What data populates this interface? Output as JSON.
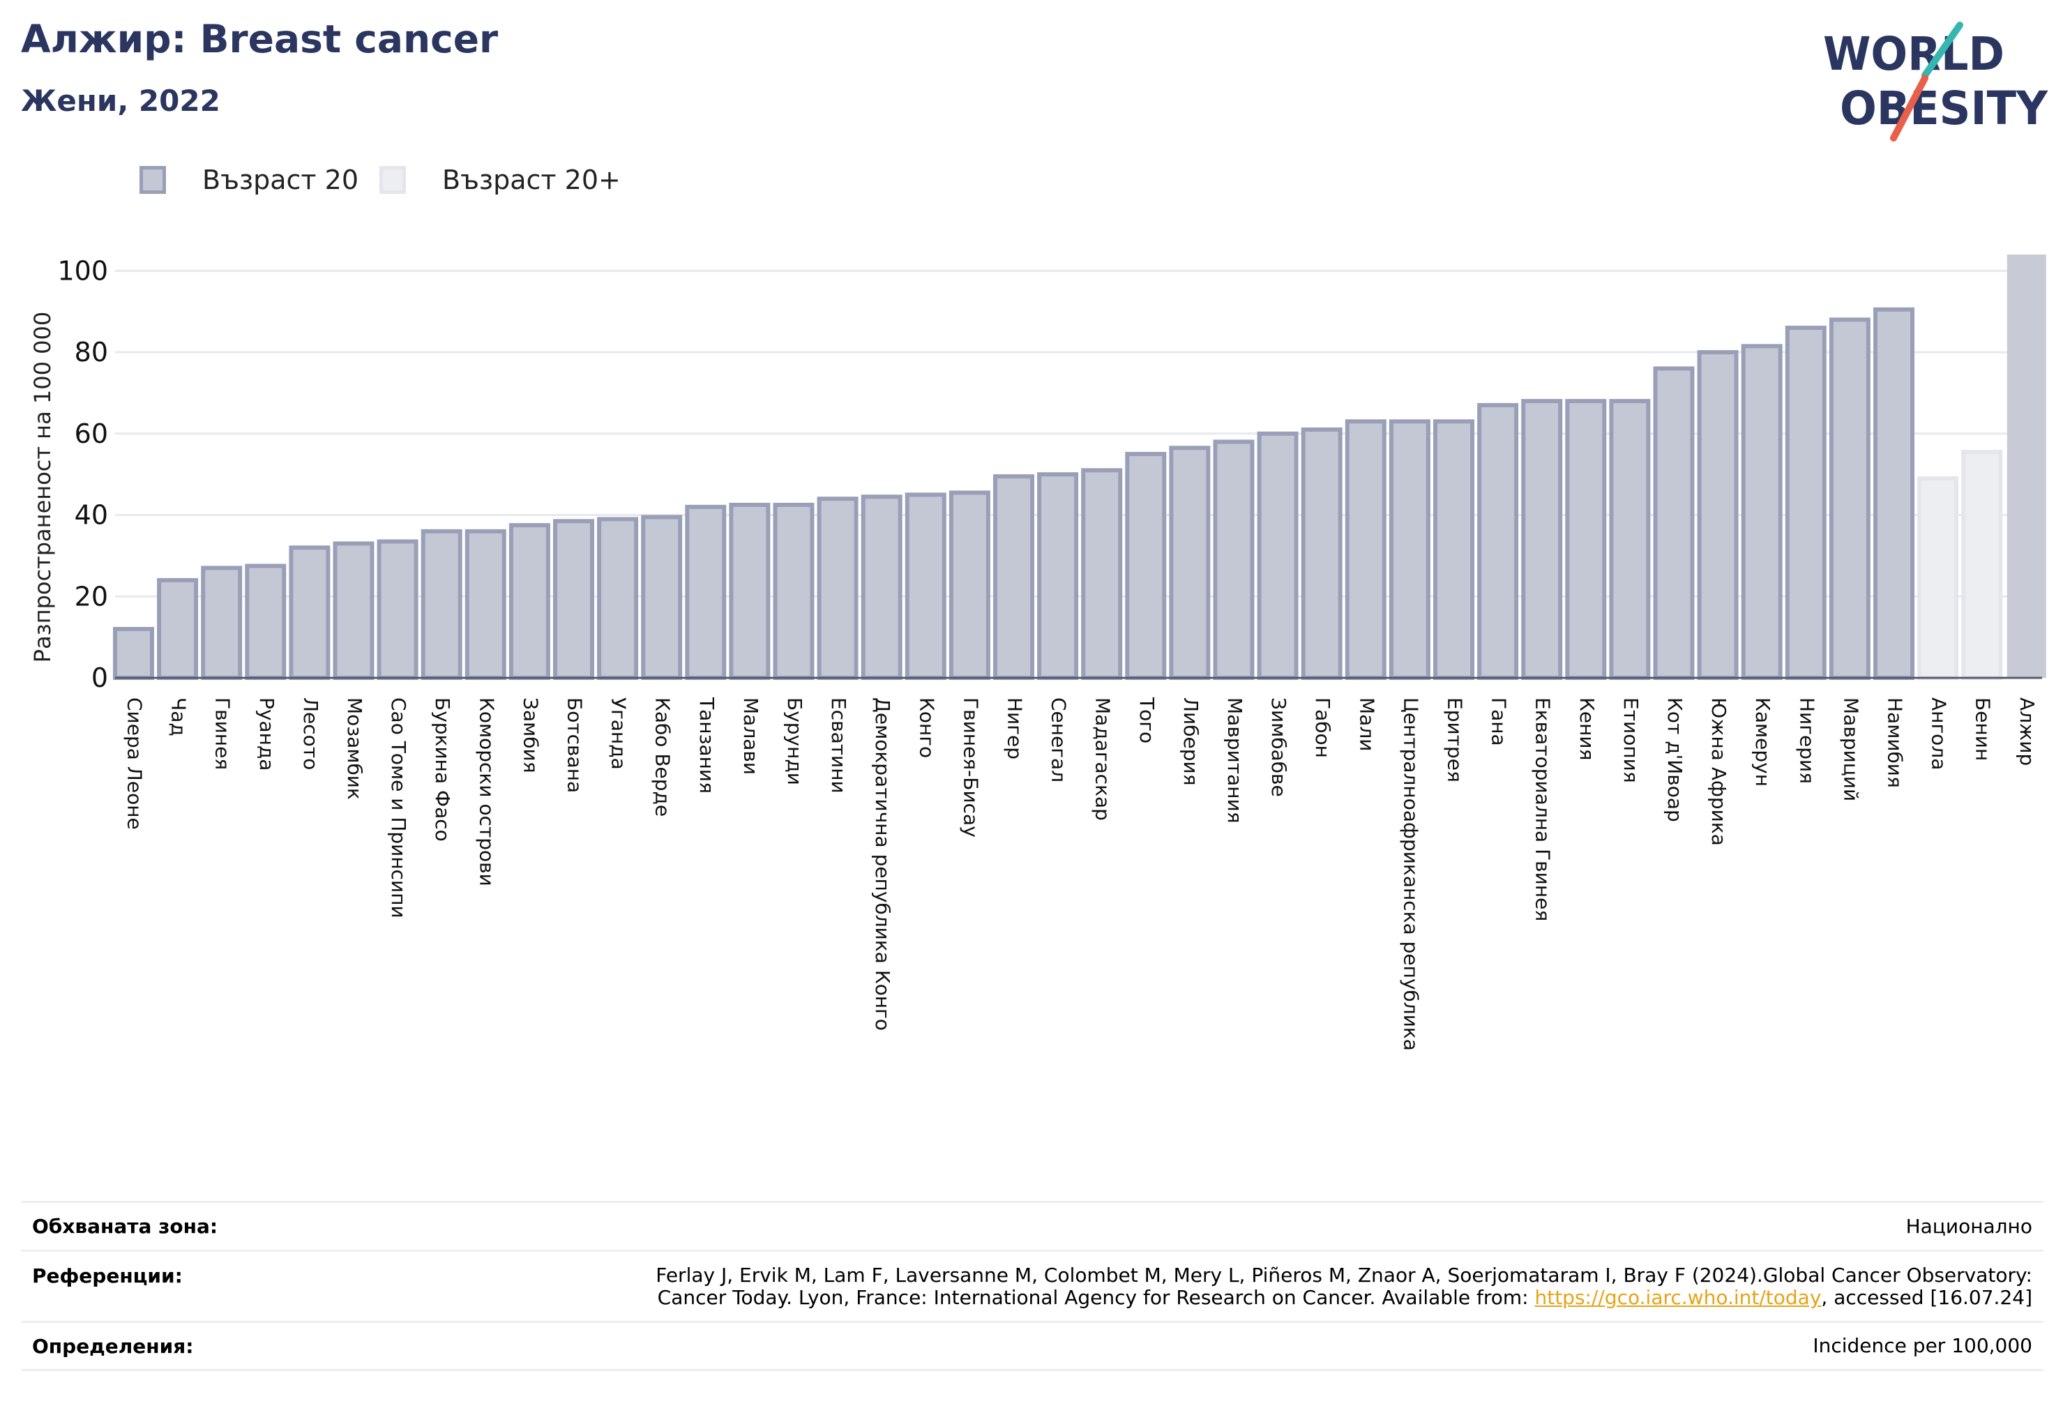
{
  "header": {
    "title": "Алжир: Breast cancer",
    "subtitle": "Жени, 2022"
  },
  "logo": {
    "line1": "WORLD",
    "line2": "OBESITY"
  },
  "legend": [
    {
      "label": "Възраст 20",
      "color": "#c4c7d4",
      "border": "#9a9fb8"
    },
    {
      "label": "Възраст 20+",
      "color": "#eceef2",
      "border": "#e4e6ec"
    }
  ],
  "colors": {
    "bar_fill": "#c4c7d4",
    "bar_stroke": "#9a9fb8",
    "light_fill": "#eceef2",
    "light_stroke": "#e4e6ec",
    "highlight_fill": "#c8cad5",
    "title": "#2a3560"
  },
  "chart_data": {
    "type": "bar",
    "ylabel": "Разпространеност  на 100 000",
    "ylim": [
      0,
      104
    ],
    "yticks": [
      0,
      20,
      40,
      60,
      80,
      100
    ],
    "grid": true,
    "legend_position": "top-left",
    "categories": [
      "Сиера Леоне",
      "Чад",
      "Гвинея",
      "Руанда",
      "Лесото",
      "Мозамбик",
      "Сао Томе и Принсипи",
      "Буркина Фасо",
      "Коморски острови",
      "Замбия",
      "Ботсвана",
      "Уганда",
      "Кабо Верде",
      "Танзания",
      "Малави",
      "Бурунди",
      "Есватини",
      "Демократична република Конго",
      "Конго",
      "Гвинея-Бисау",
      "Нигер",
      "Сенегал",
      "Мадагаскар",
      "Того",
      "Либерия",
      "Мавритания",
      "Зимбабве",
      "Габон",
      "Мали",
      "Централноафриканска република",
      "Еритрея",
      "Гана",
      "Екваториална Гвинея",
      "Кения",
      "Етиопия",
      "Кот д'Ивоар",
      "Южна Африка",
      "Камерун",
      "Нигерия",
      "Мавриций",
      "Намибия",
      "Ангола",
      "Бенин",
      "Алжир"
    ],
    "values": [
      12,
      24,
      27,
      27.5,
      32,
      33,
      33.5,
      36,
      36,
      37.5,
      38.5,
      39,
      39.5,
      42,
      42.5,
      42.5,
      44,
      44.5,
      45,
      45.5,
      49.5,
      50,
      51,
      55,
      56.5,
      58,
      60,
      61,
      63,
      63,
      63,
      67,
      68,
      68,
      68,
      76,
      80,
      81.5,
      86,
      88,
      90.5,
      49,
      55.5,
      104
    ],
    "series_type": [
      "20",
      "20",
      "20",
      "20",
      "20",
      "20",
      "20",
      "20",
      "20",
      "20",
      "20",
      "20",
      "20",
      "20",
      "20",
      "20",
      "20",
      "20",
      "20",
      "20",
      "20",
      "20",
      "20",
      "20",
      "20",
      "20",
      "20",
      "20",
      "20",
      "20",
      "20",
      "20",
      "20",
      "20",
      "20",
      "20",
      "20",
      "20",
      "20",
      "20",
      "20",
      "20+",
      "20+",
      "highlight"
    ]
  },
  "footer": {
    "rows": [
      {
        "label": "Обхваната зона:",
        "value": "Национално"
      },
      {
        "label": "Референции:",
        "value_line1": "Ferlay J, Ervik M, Lam F, Laversanne M, Colombet M, Mery L, Piñeros M, Znaor A, Soerjomataram I, Bray F (2024).Global Cancer Observatory:",
        "value_line2_pre": "Cancer Today. Lyon, France: International Agency for Research on Cancer. Available from: ",
        "link": "https://gco.iarc.who.int/today",
        "value_line2_post": ", accessed [16.07.24]"
      },
      {
        "label": "Определения:",
        "value": "Incidence per 100,000"
      }
    ]
  }
}
